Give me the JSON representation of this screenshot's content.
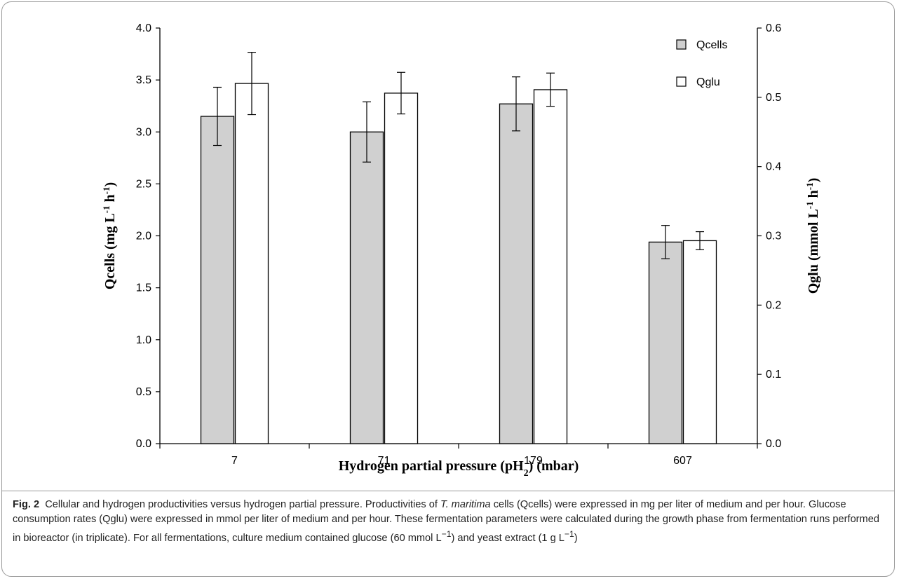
{
  "chart_data": {
    "type": "bar",
    "categories": [
      "7",
      "71",
      "179",
      "607"
    ],
    "series": [
      {
        "name": "Qcells",
        "axis": "left",
        "color": "#d0d0d0",
        "values": [
          3.15,
          3.0,
          3.27,
          1.94
        ],
        "errors": [
          0.28,
          0.29,
          0.26,
          0.16
        ]
      },
      {
        "name": "Qglu",
        "axis": "right",
        "color": "#ffffff",
        "values": [
          0.52,
          0.506,
          0.511,
          0.293
        ],
        "errors": [
          0.045,
          0.03,
          0.024,
          0.013
        ]
      }
    ],
    "xlabel_html": "Hydrogen partial pressure (pH<tspan baseline-shift=\"sub\" font-size=\"14\">2</tspan>) (mbar)",
    "xlabel": "Hydrogen partial pressure (pH2) (mbar)",
    "ylabel_left": "Qcells (mg L-1 h-1)",
    "ylabel_right": "Qglu (mmol L-1 h-1)",
    "ylim_left": [
      0,
      4
    ],
    "ylim_right": [
      0,
      0.6
    ],
    "yticks_left": [
      "0.0",
      "0.5",
      "1.0",
      "1.5",
      "2.0",
      "2.5",
      "3.0",
      "3.5",
      "4.0"
    ],
    "yticks_right": [
      "0.0",
      "0.1",
      "0.2",
      "0.3",
      "0.4",
      "0.5",
      "0.6"
    ],
    "legend_position": "top-right",
    "grid": false
  },
  "caption": {
    "fig_label": "Fig. 2",
    "text_1": "Cellular and hydrogen productivities versus hydrogen partial pressure. Productivities of ",
    "species": "T. maritima",
    "text_2": " cells (Qcells) were expressed in mg per liter of medium and per hour. Glucose consumption rates (Qglu) were expressed in mmol per liter of medium and per hour. These fermentation parameters were calculated during the growth phase from fermentation runs performed in bioreactor (in triplicate). For all fermentations, culture medium contained glucose (60 mmol L",
    "sup1": "−1",
    "text_3": ") and yeast extract (1 g L",
    "sup2": "−1",
    "text_4": ")"
  }
}
